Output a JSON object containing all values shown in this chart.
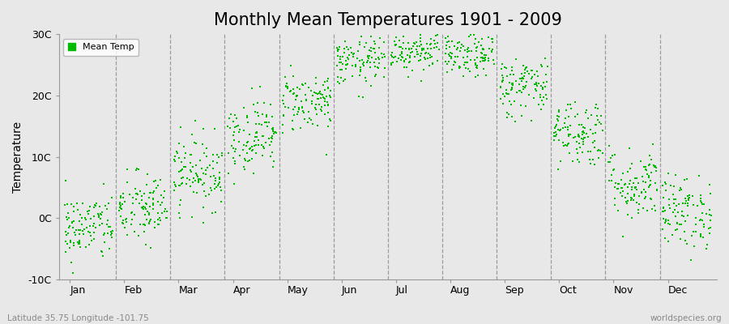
{
  "title": "Monthly Mean Temperatures 1901 - 2009",
  "ylabel": "Temperature",
  "ylim": [
    -10,
    30
  ],
  "yticks": [
    -10,
    0,
    10,
    20,
    30
  ],
  "ytick_labels": [
    "-10C",
    "0C",
    "10C",
    "20C",
    "30C"
  ],
  "months": [
    "Jan",
    "Feb",
    "Mar",
    "Apr",
    "May",
    "Jun",
    "Jul",
    "Aug",
    "Sep",
    "Oct",
    "Nov",
    "Dec"
  ],
  "dot_color": "#00BB00",
  "dot_size": 4,
  "background_color": "#E8E8E8",
  "plot_bg_color": "#E8E8E8",
  "dashed_line_color": "#888888",
  "title_fontsize": 15,
  "legend_label": "Mean Temp",
  "subtitle_left": "Latitude 35.75 Longitude -101.75",
  "subtitle_right": "worldspecies.org",
  "n_years": 109,
  "monthly_means": [
    -1.5,
    1.5,
    7.5,
    13.5,
    19.0,
    25.5,
    27.5,
    26.5,
    21.5,
    14.0,
    5.5,
    1.0
  ],
  "monthly_stds": [
    2.8,
    3.0,
    3.0,
    3.0,
    2.5,
    2.0,
    1.8,
    1.8,
    2.5,
    2.8,
    3.0,
    3.0
  ]
}
